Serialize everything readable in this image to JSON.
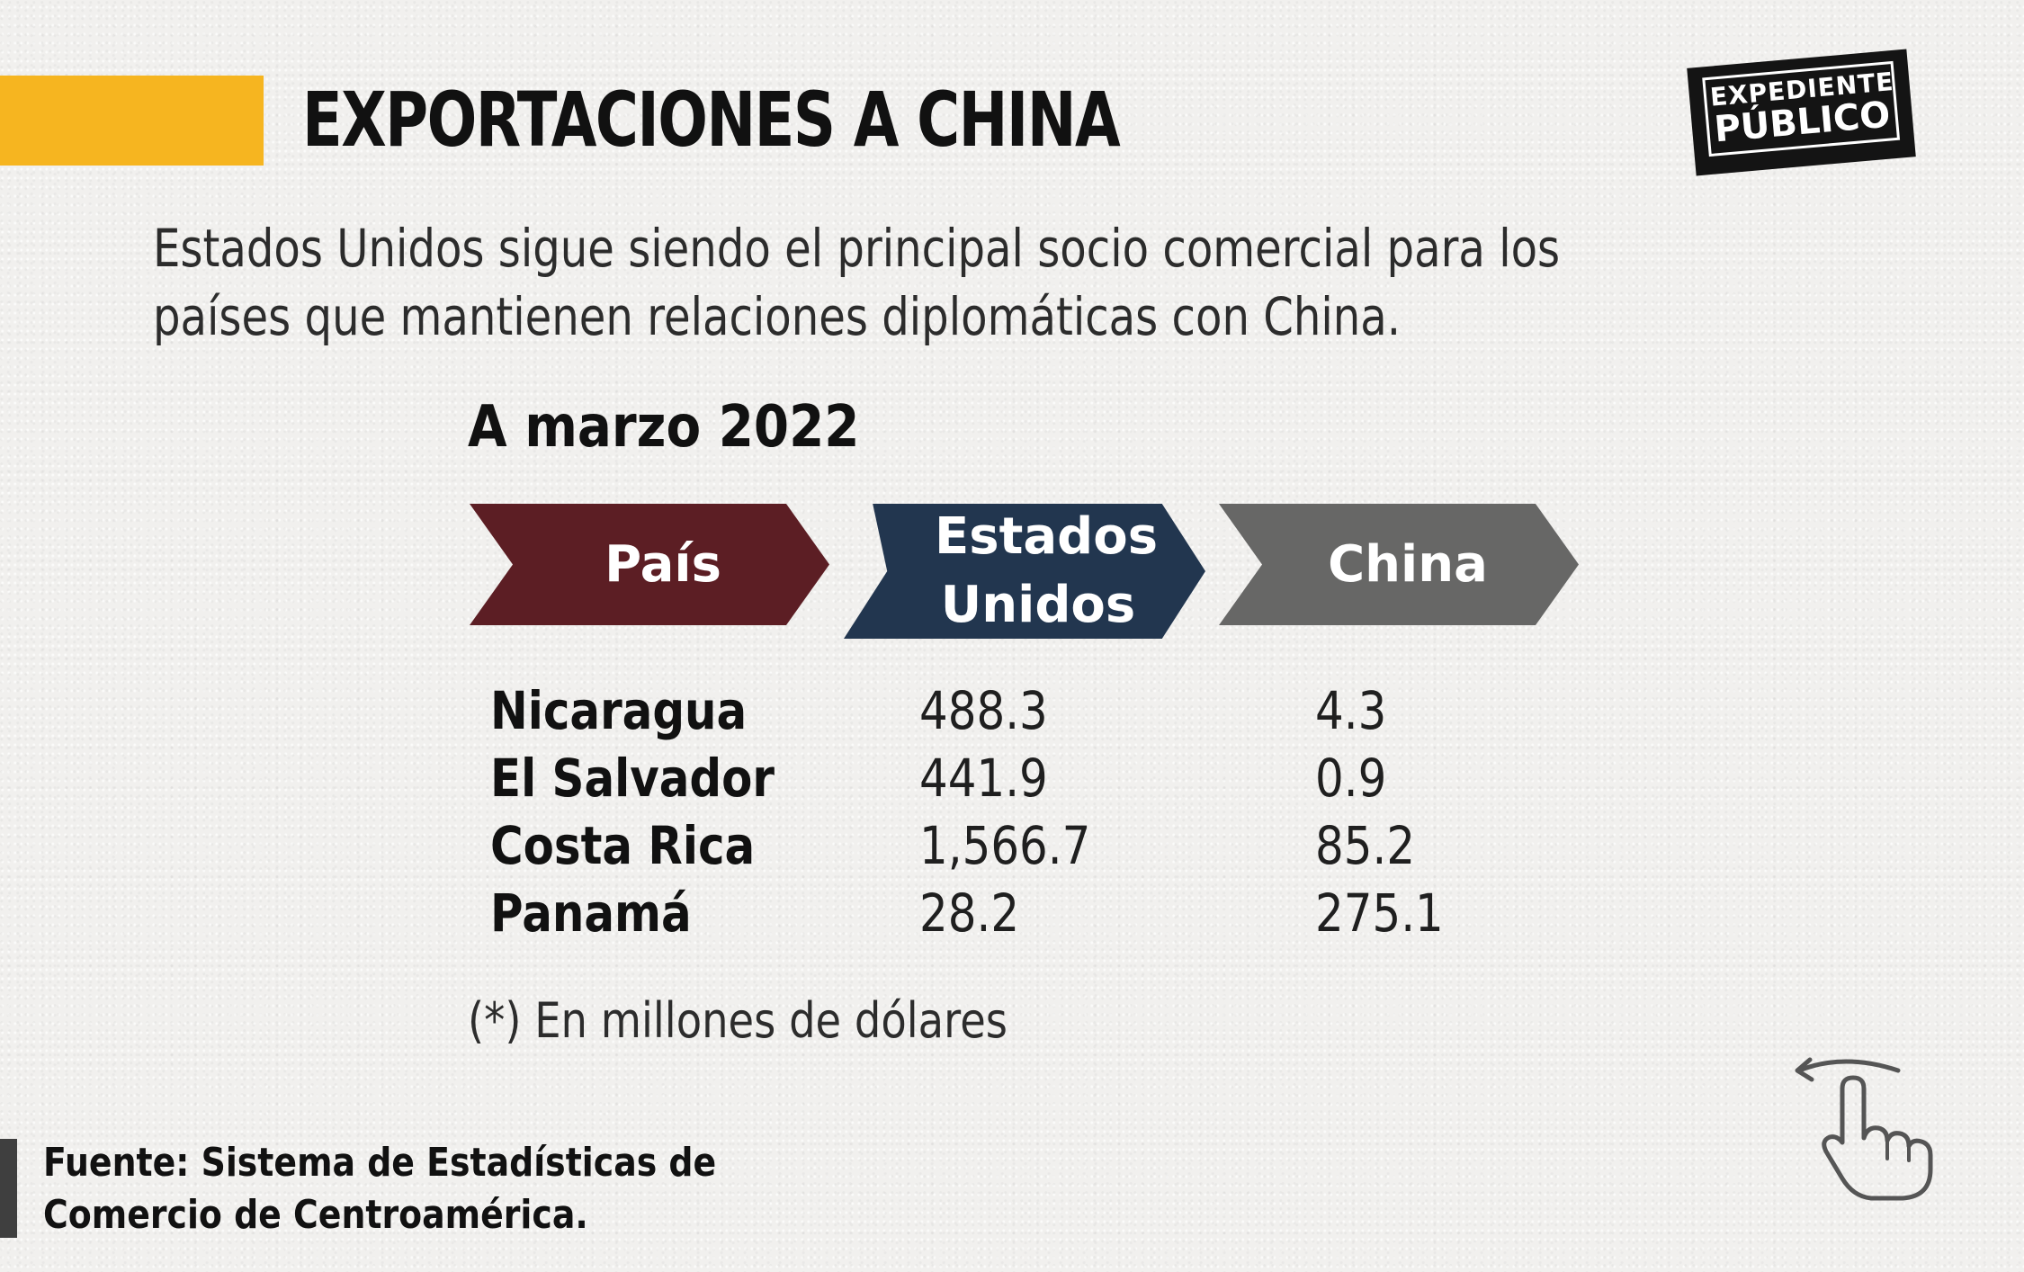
{
  "title": "EXPORTACIONES A CHINA",
  "logo": {
    "line1": "EXPEDIENTE",
    "line2": "PÚBLICO"
  },
  "subtitle": "Estados Unidos sigue siendo el principal socio comercial para los países que mantienen relaciones diplomáticas con China.",
  "date_label": "A marzo 2022",
  "headers": {
    "country": "País",
    "us": "Estados Unidos",
    "china": "China"
  },
  "rows": [
    {
      "country": "Nicaragua",
      "us": "488.3",
      "china": "4.3"
    },
    {
      "country": "El Salvador",
      "us": "441.9",
      "china": "0.9"
    },
    {
      "country": "Costa Rica",
      "us": "1,566.7",
      "china": "85.2"
    },
    {
      "country": "Panamá",
      "us": "28.2",
      "china": "275.1"
    }
  ],
  "note": "(*) En millones de dólares",
  "source": {
    "line1": "Fuente: Sistema de Estadísticas de",
    "line2": "Comercio de Centroamérica."
  },
  "icons": {
    "swipe": "swipe-left-hand-icon"
  },
  "colors": {
    "accent": "#f6b520",
    "header_country": "#5c1e24",
    "header_us": "#22364f",
    "header_china": "#676766"
  },
  "chart_data": {
    "type": "table",
    "title": "EXPORTACIONES A CHINA",
    "subtitle": "A marzo 2022",
    "columns": [
      "País",
      "Estados Unidos",
      "China"
    ],
    "rows": [
      [
        "Nicaragua",
        488.3,
        4.3
      ],
      [
        "El Salvador",
        441.9,
        0.9
      ],
      [
        "Costa Rica",
        1566.7,
        85.2
      ],
      [
        "Panamá",
        28.2,
        275.1
      ]
    ],
    "unit_note": "(*) En millones de dólares"
  }
}
